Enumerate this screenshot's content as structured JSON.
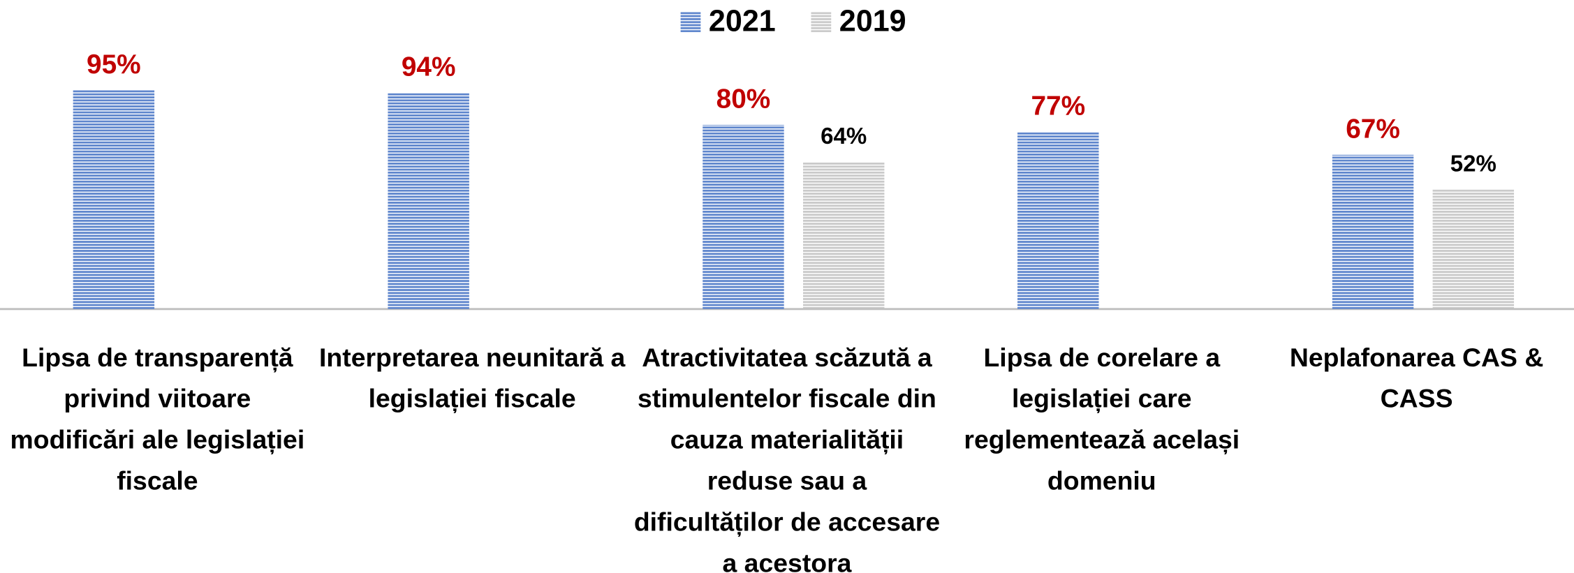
{
  "chart_data": {
    "type": "bar",
    "categories": [
      "Lipsa de transparență privind viitoare modificări ale legislației fiscale",
      "Interpretarea neunitară a legislației fiscale",
      "Atractivitatea scăzută a stimulentelor fiscale din cauza materialității reduse sau a dificultăților de accesare a acestora",
      "Lipsa de corelare a legislației care reglementează același domeniu",
      "Neplafonarea CAS & CASS"
    ],
    "series": [
      {
        "name": "2021",
        "color": "#4472c4",
        "values": [
          95,
          94,
          80,
          77,
          67
        ],
        "value_labels": [
          "95%",
          "94%",
          "80%",
          "77%",
          "67%"
        ],
        "label_color": "#c00000"
      },
      {
        "name": "2019",
        "color": "#a6a6a6",
        "values": [
          null,
          null,
          64,
          null,
          52
        ],
        "value_labels": [
          null,
          null,
          "64%",
          null,
          "52%"
        ],
        "label_color": "#000000"
      }
    ],
    "ylim": [
      0,
      100
    ]
  }
}
